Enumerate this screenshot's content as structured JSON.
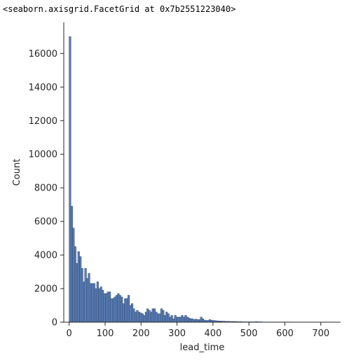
{
  "output_repr": "<seaborn.axisgrid.FacetGrid at 0x7b2551223040>",
  "colors": {
    "bar_fill": "#4c72b0",
    "bar_edge": "#2e4a72",
    "axis": "#262626"
  },
  "chart_data": {
    "type": "bar",
    "title": "",
    "xlabel": "lead_time",
    "ylabel": "Count",
    "xlim": [
      -15,
      755
    ],
    "ylim": [
      0,
      17850
    ],
    "xticks": [
      0,
      100,
      200,
      300,
      400,
      500,
      600,
      700
    ],
    "yticks": [
      0,
      2000,
      4000,
      6000,
      8000,
      10000,
      12000,
      14000,
      16000
    ],
    "grid": false,
    "legend": "none",
    "bin_width": 4.8,
    "bin_start": 0,
    "values": [
      17000,
      6900,
      5600,
      4500,
      3500,
      4200,
      3900,
      3200,
      2400,
      3200,
      2600,
      2900,
      2300,
      2300,
      2300,
      2000,
      2400,
      2000,
      2100,
      1900,
      1700,
      1700,
      1800,
      1800,
      1400,
      1400,
      1500,
      1600,
      1700,
      1600,
      1500,
      1100,
      1400,
      1400,
      1600,
      1000,
      1100,
      800,
      600,
      700,
      600,
      550,
      500,
      400,
      600,
      800,
      700,
      600,
      800,
      800,
      600,
      500,
      500,
      800,
      700,
      400,
      600,
      500,
      300,
      400,
      200,
      400,
      300,
      300,
      300,
      400,
      300,
      400,
      300,
      250,
      200,
      200,
      150,
      180,
      150,
      150,
      300,
      200,
      120,
      100,
      100,
      150,
      120,
      100,
      90,
      80,
      70,
      70,
      60,
      60,
      50,
      50,
      50,
      40,
      40,
      40,
      40,
      30,
      30,
      30,
      20,
      20,
      20,
      20,
      20,
      20,
      20,
      20,
      30,
      20,
      20,
      20,
      10,
      10,
      10,
      10,
      10,
      10,
      10,
      10,
      10,
      10,
      10,
      10,
      10,
      10,
      10,
      10
    ]
  }
}
